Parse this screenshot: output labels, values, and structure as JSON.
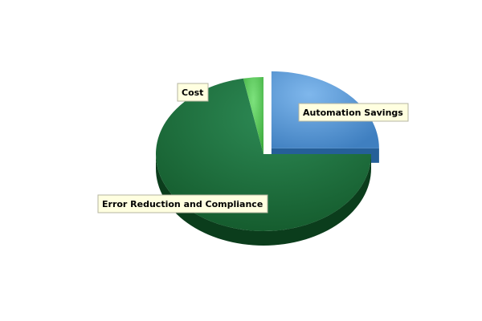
{
  "chart_data": {
    "type": "pie",
    "title": "",
    "legend": "none",
    "slices": [
      {
        "name": "Automation Savings",
        "value": 25,
        "color": "#5b9bd5",
        "exploded": true
      },
      {
        "name": "Error Reduction and Compliance",
        "value": 72,
        "color": "#1f6e3c",
        "exploded": false
      },
      {
        "name": "Cost",
        "value": 3,
        "color": "#4cc24c",
        "exploded": false
      }
    ]
  }
}
